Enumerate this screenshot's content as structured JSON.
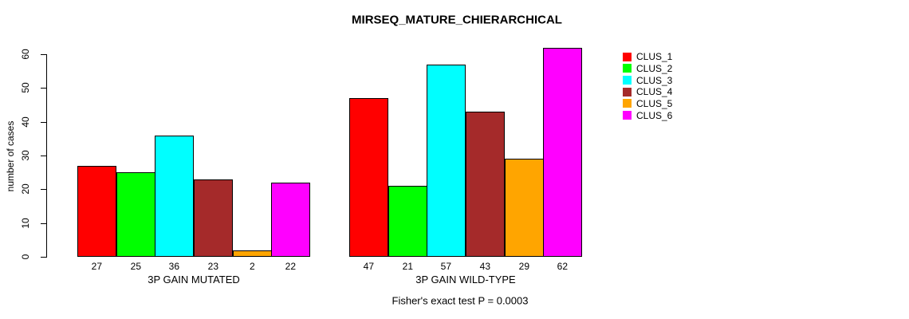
{
  "page": {
    "background": "#FFFFFF"
  },
  "chart_data": {
    "type": "bar",
    "grouped": true,
    "title": "MIRSEQ_MATURE_CHIERARCHICAL",
    "ylabel": "number of cases",
    "xlabel": "",
    "ylim": [
      0,
      60
    ],
    "yticks": [
      0,
      10,
      20,
      30,
      40,
      50,
      60
    ],
    "grid": false,
    "bar_value_labels": true,
    "legend_position": "right",
    "categories": [
      "3P GAIN MUTATED",
      "3P GAIN WILD-TYPE"
    ],
    "series": [
      {
        "name": "CLUS_1",
        "color": "#FF0000",
        "values": [
          27,
          47
        ]
      },
      {
        "name": "CLUS_2",
        "color": "#00FF00",
        "values": [
          25,
          21
        ]
      },
      {
        "name": "CLUS_3",
        "color": "#00FFFF",
        "values": [
          36,
          57
        ]
      },
      {
        "name": "CLUS_4",
        "color": "#A52A2A",
        "values": [
          23,
          43
        ]
      },
      {
        "name": "CLUS_5",
        "color": "#FFA500",
        "values": [
          2,
          29
        ]
      },
      {
        "name": "CLUS_6",
        "color": "#FF00FF",
        "values": [
          22,
          62
        ]
      }
    ],
    "annotation": "Fisher's exact test P = 0.0003"
  }
}
